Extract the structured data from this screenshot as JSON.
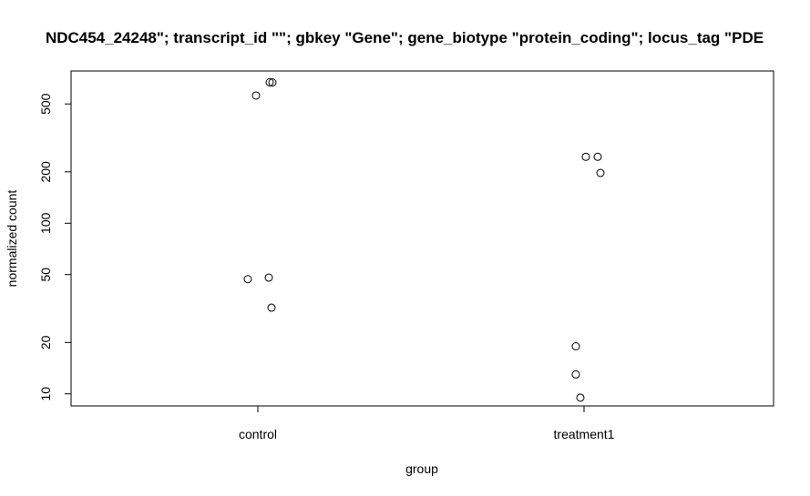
{
  "chart_data": {
    "type": "scatter",
    "title": "NDC454_24248\"; transcript_id \"\"; gbkey \"Gene\"; gene_biotype \"protein_coding\"; locus_tag \"PDE",
    "xlabel": "group",
    "ylabel": "normalized count",
    "y_scale": "log",
    "categories": [
      "control",
      "treatment1"
    ],
    "yticks": [
      10,
      20,
      50,
      100,
      200,
      500
    ],
    "ylim": [
      8.5,
      780
    ],
    "grid": false,
    "point_style": "open circle",
    "series": [
      {
        "points": [
          {
            "x": "control",
            "y": 560
          },
          {
            "x": "control",
            "y": 670
          },
          {
            "x": "control",
            "y": 668
          },
          {
            "x": "control",
            "y": 47
          },
          {
            "x": "control",
            "y": 48
          },
          {
            "x": "control",
            "y": 32
          },
          {
            "x": "treatment1",
            "y": 245
          },
          {
            "x": "treatment1",
            "y": 245
          },
          {
            "x": "treatment1",
            "y": 197
          },
          {
            "x": "treatment1",
            "y": 19
          },
          {
            "x": "treatment1",
            "y": 13
          },
          {
            "x": "treatment1",
            "y": 9.5
          }
        ]
      }
    ]
  }
}
